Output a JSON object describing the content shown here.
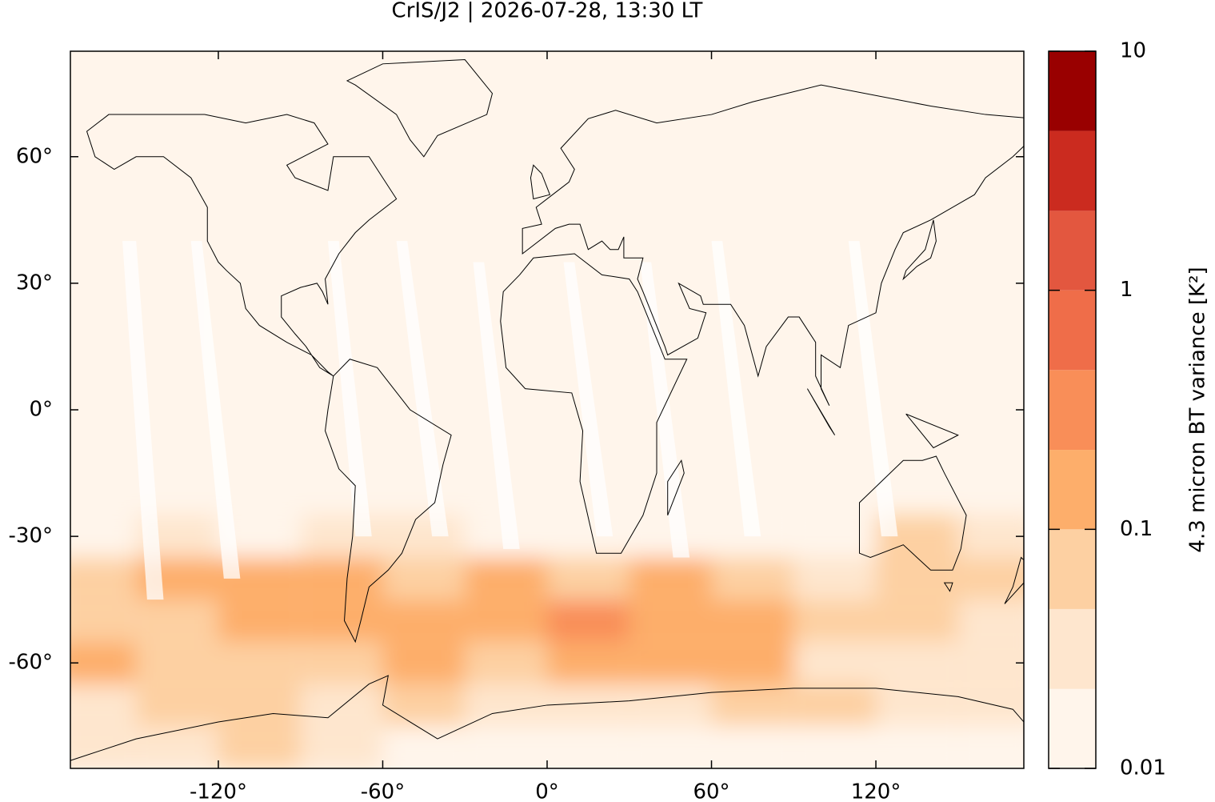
{
  "chart_data": {
    "type": "map-heatmap",
    "title": "CrIS/J2 | 2026-07-28, 13:30 LT",
    "xlim": [
      -174,
      174
    ],
    "ylim": [
      -85,
      85
    ],
    "xticks": [
      {
        "value": -120,
        "label": "-120°"
      },
      {
        "value": -60,
        "label": "-60°"
      },
      {
        "value": 0,
        "label": "0°"
      },
      {
        "value": 60,
        "label": "60°"
      },
      {
        "value": 120,
        "label": "120°"
      }
    ],
    "yticks": [
      {
        "value": -60,
        "label": "-60°"
      },
      {
        "value": -30,
        "label": "-30°"
      },
      {
        "value": 0,
        "label": "0°"
      },
      {
        "value": 30,
        "label": "30°"
      },
      {
        "value": 60,
        "label": "60°"
      }
    ],
    "field": {
      "lons": [
        -165,
        -135,
        -105,
        -75,
        -45,
        -15,
        15,
        45,
        75,
        105,
        135,
        165
      ],
      "lats": [
        -80,
        -70,
        -60,
        -50,
        -40,
        -30
      ],
      "values": [
        [
          0.03,
          0.04,
          0.06,
          0.03,
          0.02,
          0.02,
          0.02,
          0.02,
          0.02,
          0.02,
          0.02,
          0.02
        ],
        [
          0.04,
          0.05,
          0.06,
          0.04,
          0.05,
          0.03,
          0.03,
          0.04,
          0.06,
          0.06,
          0.04,
          0.04
        ],
        [
          0.1,
          0.05,
          0.05,
          0.06,
          0.2,
          0.08,
          0.15,
          0.1,
          0.1,
          0.04,
          0.04,
          0.04
        ],
        [
          0.08,
          0.08,
          0.1,
          0.1,
          0.15,
          0.12,
          0.25,
          0.15,
          0.15,
          0.05,
          0.08,
          0.04
        ],
        [
          0.08,
          0.1,
          0.1,
          0.15,
          0.08,
          0.1,
          0.08,
          0.1,
          0.05,
          0.03,
          0.08,
          0.05
        ],
        [
          0.02,
          0.03,
          0.02,
          0.03,
          0.03,
          0.02,
          0.02,
          0.02,
          0.02,
          0.02,
          0.05,
          0.03
        ]
      ]
    },
    "colorbar": {
      "label": "4.3 micron BT variance [K²]",
      "log": true,
      "lim": [
        0.01,
        10
      ],
      "ticks": [
        0.01,
        0.1,
        1,
        10
      ],
      "levels": [
        0.01,
        0.0215,
        0.0464,
        0.1,
        0.215,
        0.464,
        1,
        2.15,
        4.64,
        10
      ],
      "colors": [
        "#fff5eb",
        "#fee6ce",
        "#fdd0a2",
        "#fdae6b",
        "#f98e58",
        "#ef6d49",
        "#e3573f",
        "#cb2b1f",
        "#990000"
      ]
    }
  }
}
